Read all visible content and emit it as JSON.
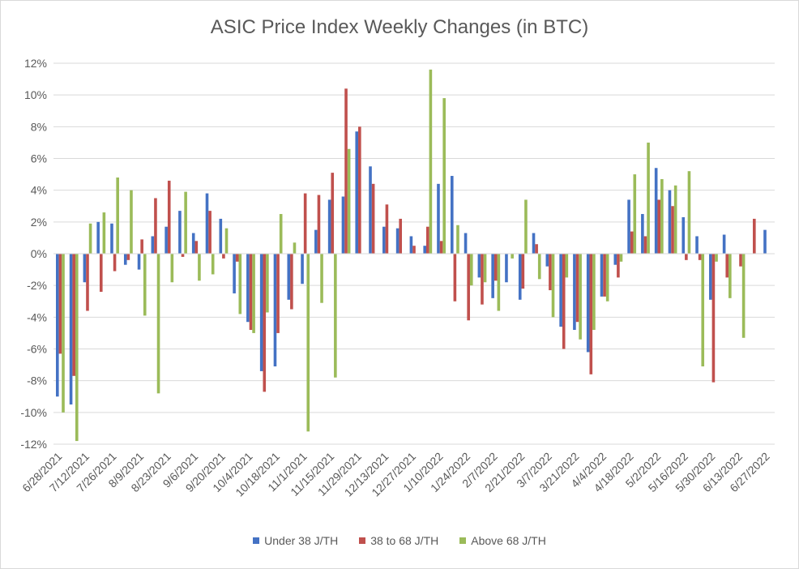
{
  "chart_data": {
    "type": "bar",
    "title": "ASIC Price Index Weekly Changes (in BTC)",
    "xlabel": "",
    "ylabel": "",
    "ylim": [
      -0.12,
      0.12
    ],
    "yticks": [
      "12%",
      "10%",
      "8%",
      "6%",
      "4%",
      "2%",
      "0%",
      "-2%",
      "-4%",
      "-6%",
      "-8%",
      "-10%",
      "-12%"
    ],
    "grid": true,
    "legend": "bottom",
    "categories": [
      "6/28/2021",
      "7/5/2021",
      "7/12/2021",
      "7/19/2021",
      "7/26/2021",
      "8/2/2021",
      "8/9/2021",
      "8/16/2021",
      "8/23/2021",
      "8/30/2021",
      "9/6/2021",
      "9/13/2021",
      "9/20/2021",
      "9/27/2021",
      "10/4/2021",
      "10/11/2021",
      "10/18/2021",
      "10/25/2021",
      "11/1/2021",
      "11/8/2021",
      "11/15/2021",
      "11/22/2021",
      "11/29/2021",
      "12/6/2021",
      "12/13/2021",
      "12/20/2021",
      "12/27/2021",
      "1/3/2022",
      "1/10/2022",
      "1/17/2022",
      "1/24/2022",
      "1/31/2022",
      "2/7/2022",
      "2/14/2022",
      "2/21/2022",
      "2/28/2022",
      "3/7/2022",
      "3/14/2022",
      "3/21/2022",
      "3/28/2022",
      "4/4/2022",
      "4/11/2022",
      "4/18/2022",
      "4/25/2022",
      "5/2/2022",
      "5/9/2022",
      "5/16/2022",
      "5/23/2022",
      "5/30/2022",
      "6/6/2022",
      "6/13/2022",
      "6/20/2022",
      "6/27/2022"
    ],
    "tick_labels": [
      "6/28/2021",
      "7/12/2021",
      "7/26/2021",
      "8/9/2021",
      "8/23/2021",
      "9/6/2021",
      "9/20/2021",
      "10/4/2021",
      "10/18/2021",
      "11/1/2021",
      "11/15/2021",
      "11/29/2021",
      "12/13/2021",
      "12/27/2021",
      "1/10/2022",
      "1/24/2022",
      "2/7/2022",
      "2/21/2022",
      "3/7/2022",
      "3/21/2022",
      "4/4/2022",
      "4/18/2022",
      "5/2/2022",
      "5/16/2022",
      "5/30/2022",
      "6/13/2022",
      "6/27/2022"
    ],
    "series": [
      {
        "name": "Under 38 J/TH",
        "color": "#4472c4",
        "values": [
          -0.09,
          -0.095,
          -0.018,
          0.02,
          0.019,
          -0.007,
          -0.01,
          0.011,
          0.017,
          0.027,
          0.013,
          0.038,
          0.022,
          -0.025,
          -0.043,
          -0.074,
          -0.071,
          -0.029,
          -0.019,
          0.015,
          0.034,
          0.036,
          0.077,
          0.055,
          0.017,
          0.016,
          0.011,
          0.005,
          0.044,
          0.049,
          0.013,
          -0.015,
          -0.028,
          -0.018,
          -0.029,
          0.013,
          -0.008,
          -0.046,
          -0.048,
          -0.062,
          -0.027,
          -0.007,
          0.034,
          0.025,
          0.054,
          0.04,
          0.023,
          0.011,
          -0.029,
          0.012,
          0,
          0,
          0.015
        ]
      },
      {
        "name": "38 to 68 J/TH",
        "color": "#c0504d",
        "values": [
          -0.063,
          -0.077,
          -0.036,
          -0.024,
          -0.011,
          -0.004,
          0.009,
          0.035,
          0.046,
          -0.002,
          0.008,
          0.027,
          -0.003,
          -0.005,
          -0.048,
          -0.087,
          -0.05,
          -0.035,
          0.038,
          0.037,
          0.051,
          0.104,
          0.08,
          0.044,
          0.031,
          0.022,
          0.005,
          0.017,
          0.008,
          -0.03,
          -0.042,
          -0.032,
          -0.017,
          0,
          -0.022,
          0.006,
          -0.023,
          -0.06,
          -0.043,
          -0.076,
          -0.027,
          -0.015,
          0.014,
          0.011,
          0.034,
          0.03,
          -0.004,
          -0.004,
          -0.081,
          -0.015,
          -0.008,
          0.022,
          0
        ]
      },
      {
        "name": "Above 68 J/TH",
        "color": "#9bbb59",
        "values": [
          -0.1,
          -0.118,
          0.019,
          0.026,
          0.048,
          0.04,
          -0.039,
          -0.088,
          -0.018,
          0.039,
          -0.017,
          -0.013,
          0.016,
          -0.038,
          -0.05,
          -0.037,
          0.025,
          0.007,
          -0.112,
          -0.031,
          -0.078,
          0.066,
          0,
          0,
          0,
          0,
          0,
          0.116,
          0.098,
          0.018,
          -0.02,
          -0.018,
          -0.036,
          -0.003,
          0.034,
          -0.016,
          -0.04,
          -0.015,
          -0.054,
          -0.048,
          -0.03,
          -0.005,
          0.05,
          0.07,
          0.047,
          0.043,
          0.052,
          -0.071,
          -0.005,
          -0.028,
          -0.053,
          0,
          0
        ]
      }
    ]
  }
}
